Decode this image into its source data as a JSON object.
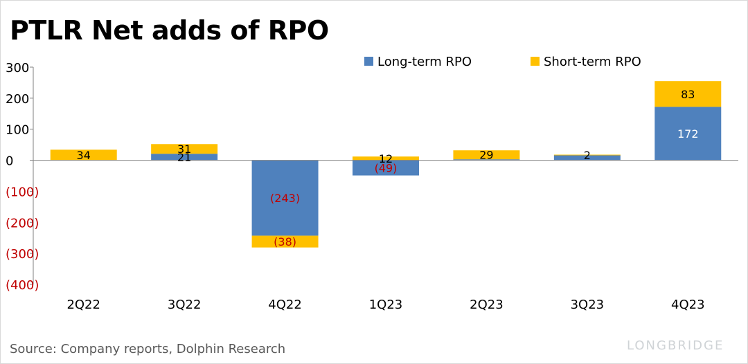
{
  "chart_data": {
    "type": "bar",
    "stacked": true,
    "title": "PTLR Net adds of RPO",
    "categories": [
      "2Q22",
      "3Q22",
      "4Q22",
      "1Q23",
      "2Q23",
      "3Q23",
      "4Q23"
    ],
    "series": [
      {
        "name": "Long-term RPO",
        "color": "#4F81BD",
        "values": [
          0,
          21,
          -243,
          -49,
          3,
          16,
          172
        ],
        "labels": [
          "",
          "21",
          "(243)",
          "(49)",
          "",
          "",
          "172"
        ]
      },
      {
        "name": "Short-term RPO",
        "color": "#FFC000",
        "values": [
          34,
          31,
          -38,
          12,
          29,
          2,
          83
        ],
        "labels": [
          "34",
          "31",
          "(38)",
          "12",
          "29",
          "2",
          "83"
        ]
      }
    ],
    "ylim": [
      -400,
      300
    ],
    "yticks": [
      {
        "value": 300,
        "label": "300"
      },
      {
        "value": 200,
        "label": "200"
      },
      {
        "value": 100,
        "label": "100"
      },
      {
        "value": 0,
        "label": "0"
      },
      {
        "value": -100,
        "label": "(100)"
      },
      {
        "value": -200,
        "label": "(200)"
      },
      {
        "value": -300,
        "label": "(300)"
      },
      {
        "value": -400,
        "label": "(400)"
      }
    ],
    "negative_label_color": "#C00000",
    "legend_position": "top-right",
    "grid": false
  },
  "source": "Source: Company reports, Dolphin Research",
  "watermark": {
    "brand": "LONGBRIDGE"
  }
}
